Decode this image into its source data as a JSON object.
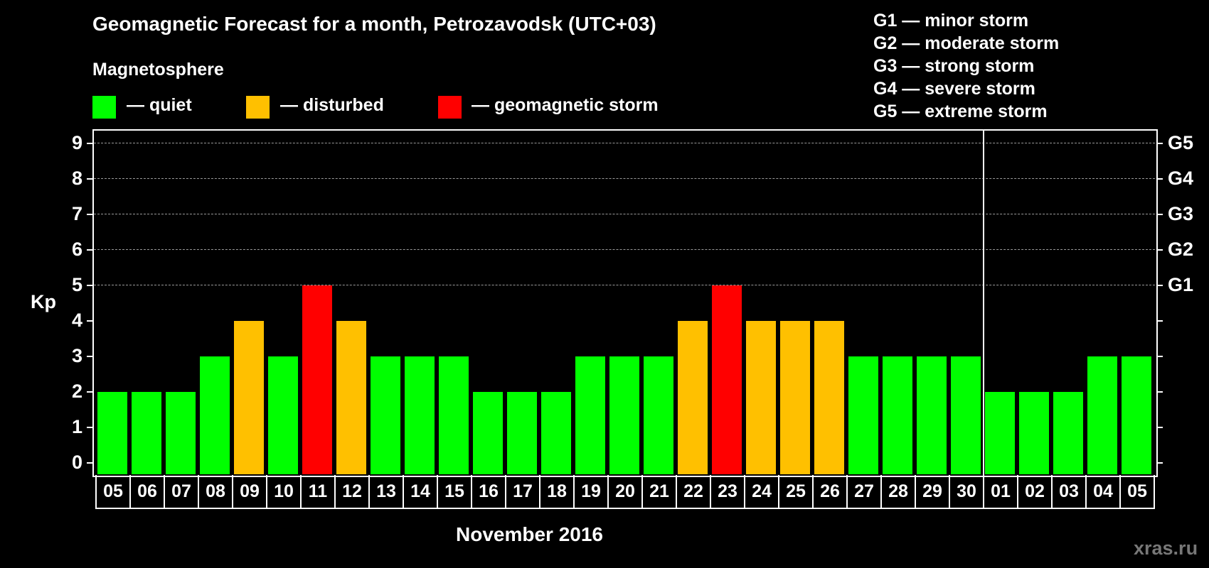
{
  "header": {
    "title": "Geomagnetic Forecast for a month, Petrozavodsk (UTC+03)",
    "subtitle": "Magnetosphere"
  },
  "legend": {
    "items": [
      {
        "label": "— quiet",
        "color": "#00ff00"
      },
      {
        "label": "— disturbed",
        "color": "#ffc000"
      },
      {
        "label": "— geomagnetic storm",
        "color": "#ff0000"
      }
    ]
  },
  "storm_legend": [
    "G1 — minor storm",
    "G2 — moderate storm",
    "G3 — strong storm",
    "G4 — severe storm",
    "G5 — extreme storm"
  ],
  "axis": {
    "ylabel": "Kp",
    "yticks": [
      "0",
      "1",
      "2",
      "3",
      "4",
      "5",
      "6",
      "7",
      "8",
      "9"
    ],
    "right_labels": [
      {
        "kp": 5,
        "label": "G1"
      },
      {
        "kp": 6,
        "label": "G2"
      },
      {
        "kp": 7,
        "label": "G3"
      },
      {
        "kp": 8,
        "label": "G4"
      },
      {
        "kp": 9,
        "label": "G5"
      }
    ],
    "xlabel": "November 2016"
  },
  "watermark": "xras.ru",
  "colors": {
    "quiet": "#00ff00",
    "disturbed": "#ffc000",
    "storm": "#ff0000"
  },
  "chart_data": {
    "type": "bar",
    "title": "Geomagnetic Forecast for a month, Petrozavodsk (UTC+03)",
    "xlabel": "November 2016",
    "ylabel": "Kp",
    "ylim": [
      0,
      9
    ],
    "grid": "dashed horizontal at Kp 5-9",
    "month_break_after": "30",
    "categories": [
      "05",
      "06",
      "07",
      "08",
      "09",
      "10",
      "11",
      "12",
      "13",
      "14",
      "15",
      "16",
      "17",
      "18",
      "19",
      "20",
      "21",
      "22",
      "23",
      "24",
      "25",
      "26",
      "27",
      "28",
      "29",
      "30",
      "01",
      "02",
      "03",
      "04",
      "05"
    ],
    "values": [
      2,
      2,
      2,
      3,
      4,
      3,
      5,
      4,
      3,
      3,
      3,
      2,
      2,
      2,
      3,
      3,
      3,
      4,
      5,
      4,
      4,
      4,
      3,
      3,
      3,
      3,
      2,
      2,
      2,
      3,
      3
    ],
    "status": [
      "quiet",
      "quiet",
      "quiet",
      "quiet",
      "disturbed",
      "quiet",
      "storm",
      "disturbed",
      "quiet",
      "quiet",
      "quiet",
      "quiet",
      "quiet",
      "quiet",
      "quiet",
      "quiet",
      "quiet",
      "disturbed",
      "storm",
      "disturbed",
      "disturbed",
      "disturbed",
      "quiet",
      "quiet",
      "quiet",
      "quiet",
      "quiet",
      "quiet",
      "quiet",
      "quiet",
      "quiet"
    ],
    "legend": [
      "quiet",
      "disturbed",
      "geomagnetic storm"
    ],
    "right_axis": {
      "5": "G1",
      "6": "G2",
      "7": "G3",
      "8": "G4",
      "9": "G5"
    }
  }
}
